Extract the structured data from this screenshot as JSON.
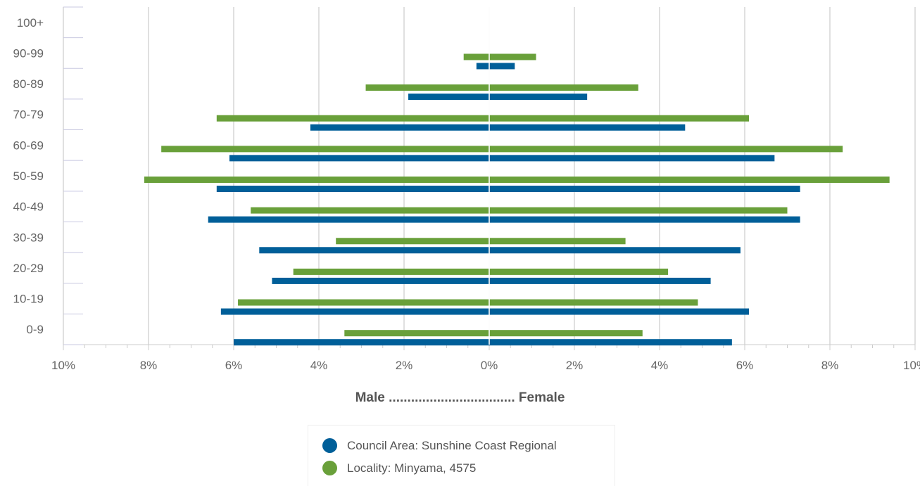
{
  "chart_data": {
    "type": "bar",
    "orientation": "horizontal-population-pyramid",
    "categories": [
      "0-9",
      "10-19",
      "20-29",
      "30-39",
      "40-49",
      "50-59",
      "60-69",
      "70-79",
      "80-89",
      "90-99",
      "100+"
    ],
    "x_tick_labels": [
      "10%",
      "8%",
      "6%",
      "4%",
      "2%",
      "0%",
      "2%",
      "4%",
      "6%",
      "8%",
      "10%"
    ],
    "xlim": [
      -10,
      10
    ],
    "x_unit": "%",
    "grid": true,
    "legend_position": "bottom-center",
    "left_label": "Male",
    "right_label": "Female",
    "dots": "..................................",
    "series": [
      {
        "name": "Council Area: Sunshine Coast Regional",
        "color": "#005f99",
        "male": [
          6.0,
          6.3,
          5.1,
          5.4,
          6.6,
          6.4,
          6.1,
          4.2,
          1.9,
          0.3,
          0.0
        ],
        "female": [
          5.7,
          6.1,
          5.2,
          5.9,
          7.3,
          7.3,
          6.7,
          4.6,
          2.3,
          0.6,
          0.0
        ]
      },
      {
        "name": "Locality: Minyama, 4575",
        "color": "#69a03a",
        "male": [
          3.4,
          5.9,
          4.6,
          3.6,
          5.6,
          8.1,
          7.7,
          6.4,
          2.9,
          0.6,
          0.0
        ],
        "female": [
          3.6,
          4.9,
          4.2,
          3.2,
          7.0,
          9.4,
          8.3,
          6.1,
          3.5,
          1.1,
          0.0
        ]
      }
    ]
  }
}
